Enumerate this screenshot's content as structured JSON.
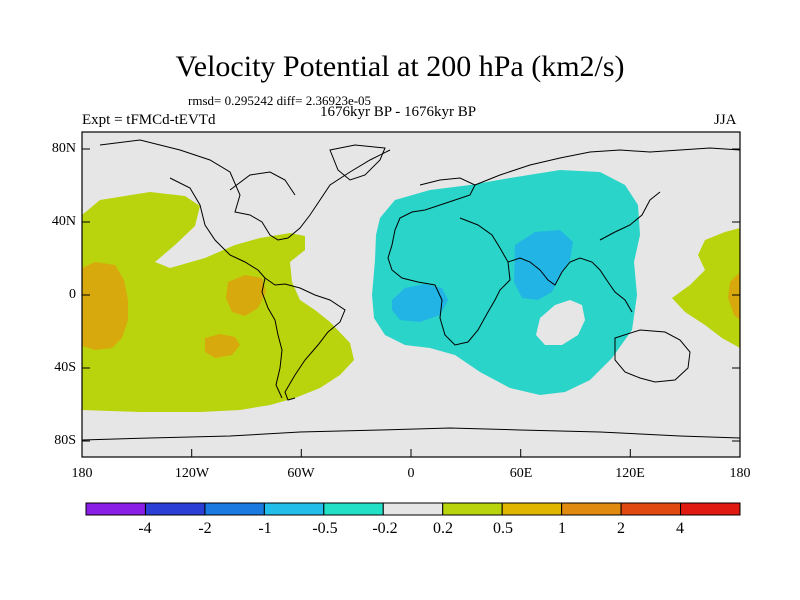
{
  "title": "Velocity Potential at 200 hPa (km2/s)",
  "stats": "rmsd= 0.295242 diff= 2.36923e-05",
  "experiment": "Expt = tFMCd-tEVTd",
  "period": "1676kyr BP - 1676kyr BP",
  "season": "JJA",
  "y_axis_labels": [
    "80N",
    "40N",
    "0",
    "40S",
    "80S"
  ],
  "x_axis_labels": [
    "180",
    "120W",
    "60W",
    "0",
    "60E",
    "120E",
    "180"
  ],
  "colorbar": {
    "labels": [
      "-4",
      "-2",
      "-1",
      "-0.5",
      "-0.2",
      "0.2",
      "0.5",
      "1",
      "2",
      "4"
    ],
    "colors": [
      "#8a1ee6",
      "#2b3ed6",
      "#1a7ae0",
      "#22bde8",
      "#22e0c6",
      "#e6e6e6",
      "#b9d40c",
      "#e0b600",
      "#e08a10",
      "#e04a10",
      "#e01a10"
    ]
  },
  "fill_colors": {
    "positive_weak": "#b9d40c",
    "positive_mid": "#d7a90d",
    "negative_weak": "#2ad4c8",
    "negative_mid": "#22b4e4",
    "background": "#e6e6e6",
    "coast": "#000000"
  }
}
